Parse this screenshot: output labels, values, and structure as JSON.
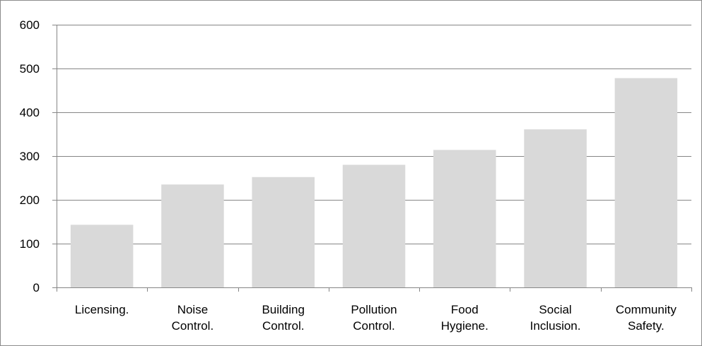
{
  "chart_data": {
    "type": "bar",
    "categories": [
      [
        "Licensing."
      ],
      [
        "Noise",
        "Control."
      ],
      [
        "Building",
        "Control."
      ],
      [
        "Pollution",
        "Control."
      ],
      [
        "Food",
        "Hygiene."
      ],
      [
        "Social",
        "Inclusion."
      ],
      [
        "Community",
        "Safety."
      ]
    ],
    "values": [
      143,
      235,
      252,
      280,
      314,
      361,
      478
    ],
    "title": "",
    "xlabel": "",
    "ylabel": "",
    "ylim": [
      0,
      600
    ],
    "yticks": [
      0,
      100,
      200,
      300,
      400,
      500,
      600
    ],
    "grid": true,
    "legend": "none",
    "colors": {
      "bar": "#d9d9d9",
      "grid": "#868686",
      "axis": "#868686",
      "frame": "#8c8c8c",
      "text": "#000000"
    }
  }
}
